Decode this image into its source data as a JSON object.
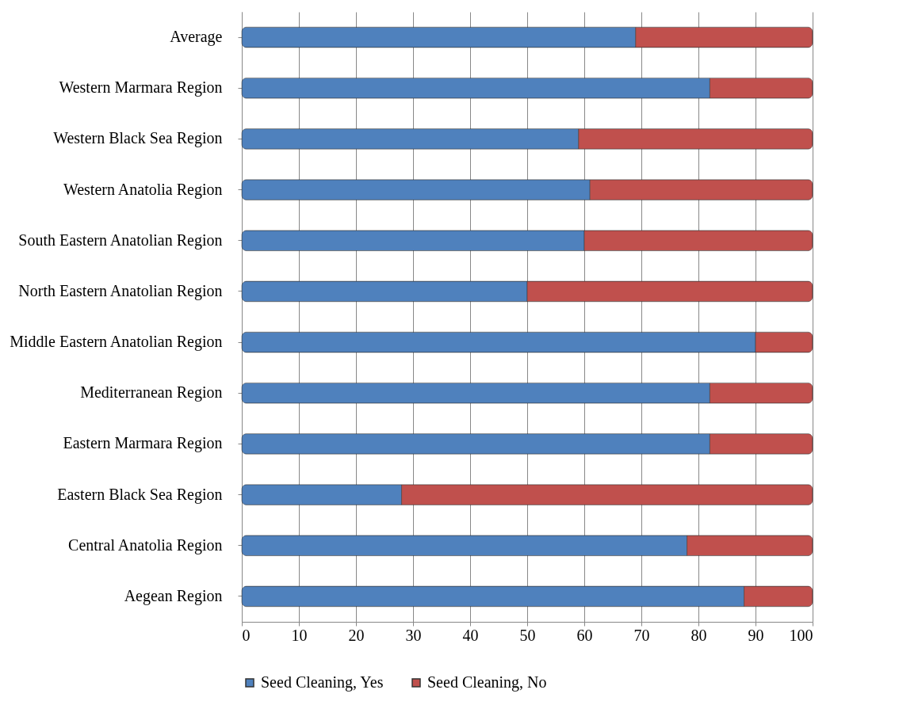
{
  "chart_data": {
    "type": "bar",
    "orientation": "horizontal",
    "stacked": true,
    "categories": [
      "Average",
      "Western Marmara Region",
      "Western Black Sea Region",
      "Western Anatolia Region",
      "South Eastern Anatolian Region",
      "North Eastern Anatolian Region",
      "Middle Eastern Anatolian Region",
      "Mediterranean Region",
      "Eastern Marmara Region",
      "Eastern Black Sea Region",
      "Central Anatolia Region",
      "Aegean Region"
    ],
    "series": [
      {
        "name": "Seed Cleaning, Yes",
        "color": "#4f81bd",
        "values": [
          69,
          82,
          59,
          61,
          60,
          50,
          90,
          82,
          82,
          28,
          78,
          88
        ]
      },
      {
        "name": "Seed Cleaning, No",
        "color": "#c0504d",
        "values": [
          31,
          18,
          41,
          39,
          40,
          50,
          10,
          18,
          18,
          72,
          22,
          12
        ]
      }
    ],
    "xlim": [
      0,
      100
    ],
    "xticks": [
      0,
      10,
      20,
      30,
      40,
      50,
      60,
      70,
      80,
      90,
      100
    ],
    "grid": "x",
    "legend": "bottom"
  }
}
